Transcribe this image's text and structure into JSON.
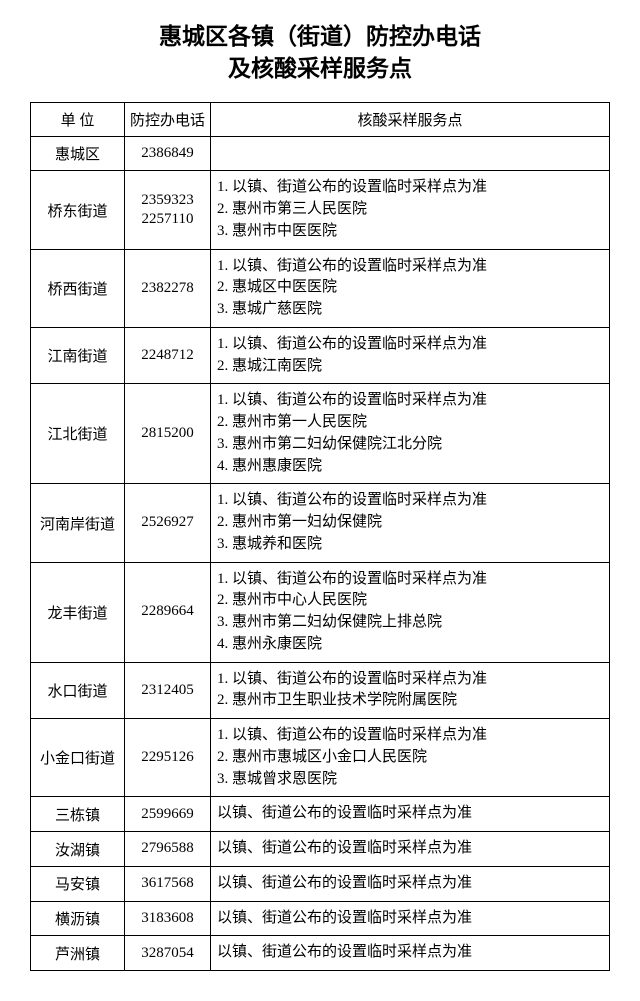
{
  "title_line1": "惠城区各镇（街道）防控办电话",
  "title_line2": "及核酸采样服务点",
  "columns": [
    "单 位",
    "防控办电话",
    "核酸采样服务点"
  ],
  "rows": [
    {
      "unit": "惠城区",
      "phone": "2386849",
      "services": []
    },
    {
      "unit": "桥东街道",
      "phone": "2359323\n2257110",
      "services": [
        "1. 以镇、街道公布的设置临时采样点为准",
        "2. 惠州市第三人民医院",
        "3. 惠州市中医医院"
      ]
    },
    {
      "unit": "桥西街道",
      "phone": "2382278",
      "services": [
        "1. 以镇、街道公布的设置临时采样点为准",
        "2. 惠城区中医医院",
        "3. 惠城广慈医院"
      ]
    },
    {
      "unit": "江南街道",
      "phone": "2248712",
      "services": [
        "1. 以镇、街道公布的设置临时采样点为准",
        "2. 惠城江南医院"
      ]
    },
    {
      "unit": "江北街道",
      "phone": "2815200",
      "services": [
        "1. 以镇、街道公布的设置临时采样点为准",
        "2. 惠州市第一人民医院",
        "3. 惠州市第二妇幼保健院江北分院",
        "4. 惠州惠康医院"
      ]
    },
    {
      "unit": "河南岸街道",
      "phone": "2526927",
      "services": [
        "1. 以镇、街道公布的设置临时采样点为准",
        "2. 惠州市第一妇幼保健院",
        "3. 惠城养和医院"
      ]
    },
    {
      "unit": "龙丰街道",
      "phone": "2289664",
      "services": [
        "1. 以镇、街道公布的设置临时采样点为准",
        "2. 惠州市中心人民医院",
        "3. 惠州市第二妇幼保健院上排总院",
        "4. 惠州永康医院"
      ]
    },
    {
      "unit": "水口街道",
      "phone": "2312405",
      "services": [
        "1. 以镇、街道公布的设置临时采样点为准",
        "2. 惠州市卫生职业技术学院附属医院"
      ]
    },
    {
      "unit": "小金口街道",
      "phone": "2295126",
      "services": [
        "1. 以镇、街道公布的设置临时采样点为准",
        "2. 惠州市惠城区小金口人民医院",
        "3. 惠城曾求恩医院"
      ]
    },
    {
      "unit": "三栋镇",
      "phone": "2599669",
      "services": [
        "以镇、街道公布的设置临时采样点为准"
      ]
    },
    {
      "unit": "汝湖镇",
      "phone": "2796588",
      "services": [
        "以镇、街道公布的设置临时采样点为准"
      ]
    },
    {
      "unit": "马安镇",
      "phone": "3617568",
      "services": [
        "以镇、街道公布的设置临时采样点为准"
      ]
    },
    {
      "unit": "横沥镇",
      "phone": "3183608",
      "services": [
        "以镇、街道公布的设置临时采样点为准"
      ]
    },
    {
      "unit": "芦洲镇",
      "phone": "3287054",
      "services": [
        "以镇、街道公布的设置临时采样点为准"
      ]
    }
  ]
}
